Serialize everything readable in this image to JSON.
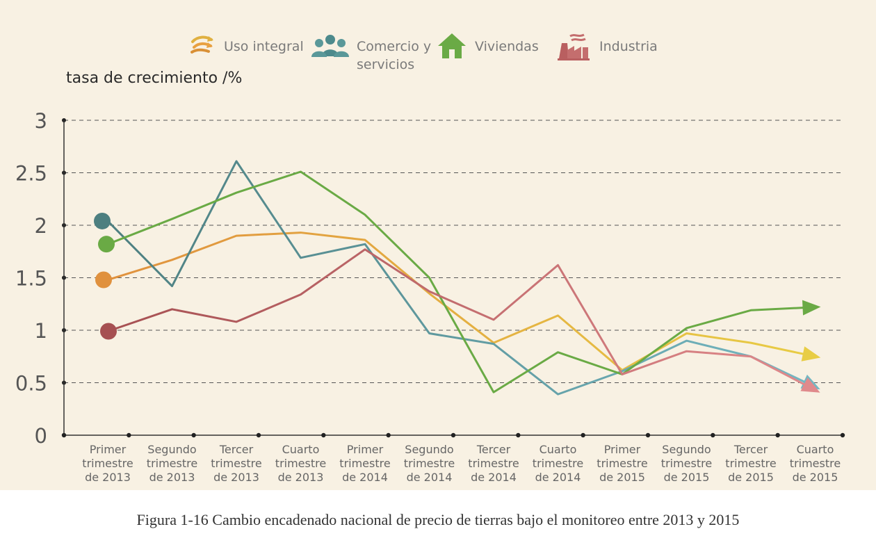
{
  "chart_data": {
    "type": "line",
    "title": "",
    "ylabel": "tasa de crecimiento /%",
    "ylim": [
      0,
      3
    ],
    "yticks": [
      "0",
      "0.5",
      "1",
      "1.5",
      "2",
      "2.5",
      "3"
    ],
    "grid": "dashed horizontal",
    "legend_position": "top-center",
    "categories": [
      "Primer trimestre de 2013",
      "Segundo trimestre de 2013",
      "Tercer trimestre de 2013",
      "Cuarto trimestre de 2013",
      "Primer trimestre de 2014",
      "Segundo trimestre de 2014",
      "Tercer trimestre de 2014",
      "Cuarto trimestre de 2014",
      "Primer trimestre de 2015",
      "Segundo trimestre de 2015",
      "Tercer trimestre de 2015",
      "Cuarto trimestre de 2015"
    ],
    "category_lines": [
      [
        "Primer",
        "trimestre",
        "de 2013"
      ],
      [
        "Segundo",
        "trimestre",
        "de 2013"
      ],
      [
        "Tercer",
        "trimestre",
        "de 2013"
      ],
      [
        "Cuarto",
        "trimestre",
        "de 2013"
      ],
      [
        "Primer",
        "trimestre",
        "de 2014"
      ],
      [
        "Segundo",
        "trimestre",
        "de 2014"
      ],
      [
        "Tercer",
        "trimestre",
        "de 2014"
      ],
      [
        "Cuarto",
        "trimestre",
        "de 2014"
      ],
      [
        "Primer",
        "trimestre",
        "de 2015"
      ],
      [
        "Segundo",
        "trimestre",
        "de 2015"
      ],
      [
        "Tercer",
        "trimestre",
        "de 2015"
      ],
      [
        "Cuarto",
        "trimestre",
        "de 2015"
      ]
    ],
    "series": [
      {
        "name": "Uso integral",
        "color": "#e0913e",
        "end_color": "#e8cd45",
        "values": [
          1.48,
          1.67,
          1.9,
          1.93,
          1.86,
          1.35,
          0.88,
          1.14,
          0.62,
          0.97,
          0.88,
          0.75
        ]
      },
      {
        "name": "Comercio y servicios",
        "color": "#4d7f80",
        "end_color": "#74b7c2",
        "values": [
          2.04,
          1.42,
          2.61,
          1.69,
          1.82,
          0.97,
          0.87,
          0.39,
          0.61,
          0.9,
          0.75,
          0.46
        ]
      },
      {
        "name": "Viviendas",
        "color": "#6aaa45",
        "end_color": "#6aaa45",
        "values": [
          1.82,
          2.06,
          2.31,
          2.51,
          2.1,
          1.5,
          0.41,
          0.79,
          0.58,
          1.02,
          1.19,
          1.22
        ]
      },
      {
        "name": "Industria",
        "color": "#a65052",
        "end_color": "#e08a8c",
        "values": [
          0.99,
          1.2,
          1.08,
          1.34,
          1.77,
          1.37,
          1.1,
          1.62,
          0.58,
          0.8,
          0.75,
          0.43
        ]
      }
    ]
  },
  "legend": [
    {
      "icon": "arrows-icon",
      "lines": [
        "Uso integral"
      ]
    },
    {
      "icon": "people-icon",
      "lines": [
        "Comercio y",
        "servicios"
      ]
    },
    {
      "icon": "house-icon",
      "lines": [
        "Viviendas"
      ]
    },
    {
      "icon": "factory-icon",
      "lines": [
        "Industria"
      ]
    }
  ],
  "caption": "Figura 1-16  Cambio encadenado nacional de precio de tierras bajo el monitoreo entre 2013 y 2015"
}
